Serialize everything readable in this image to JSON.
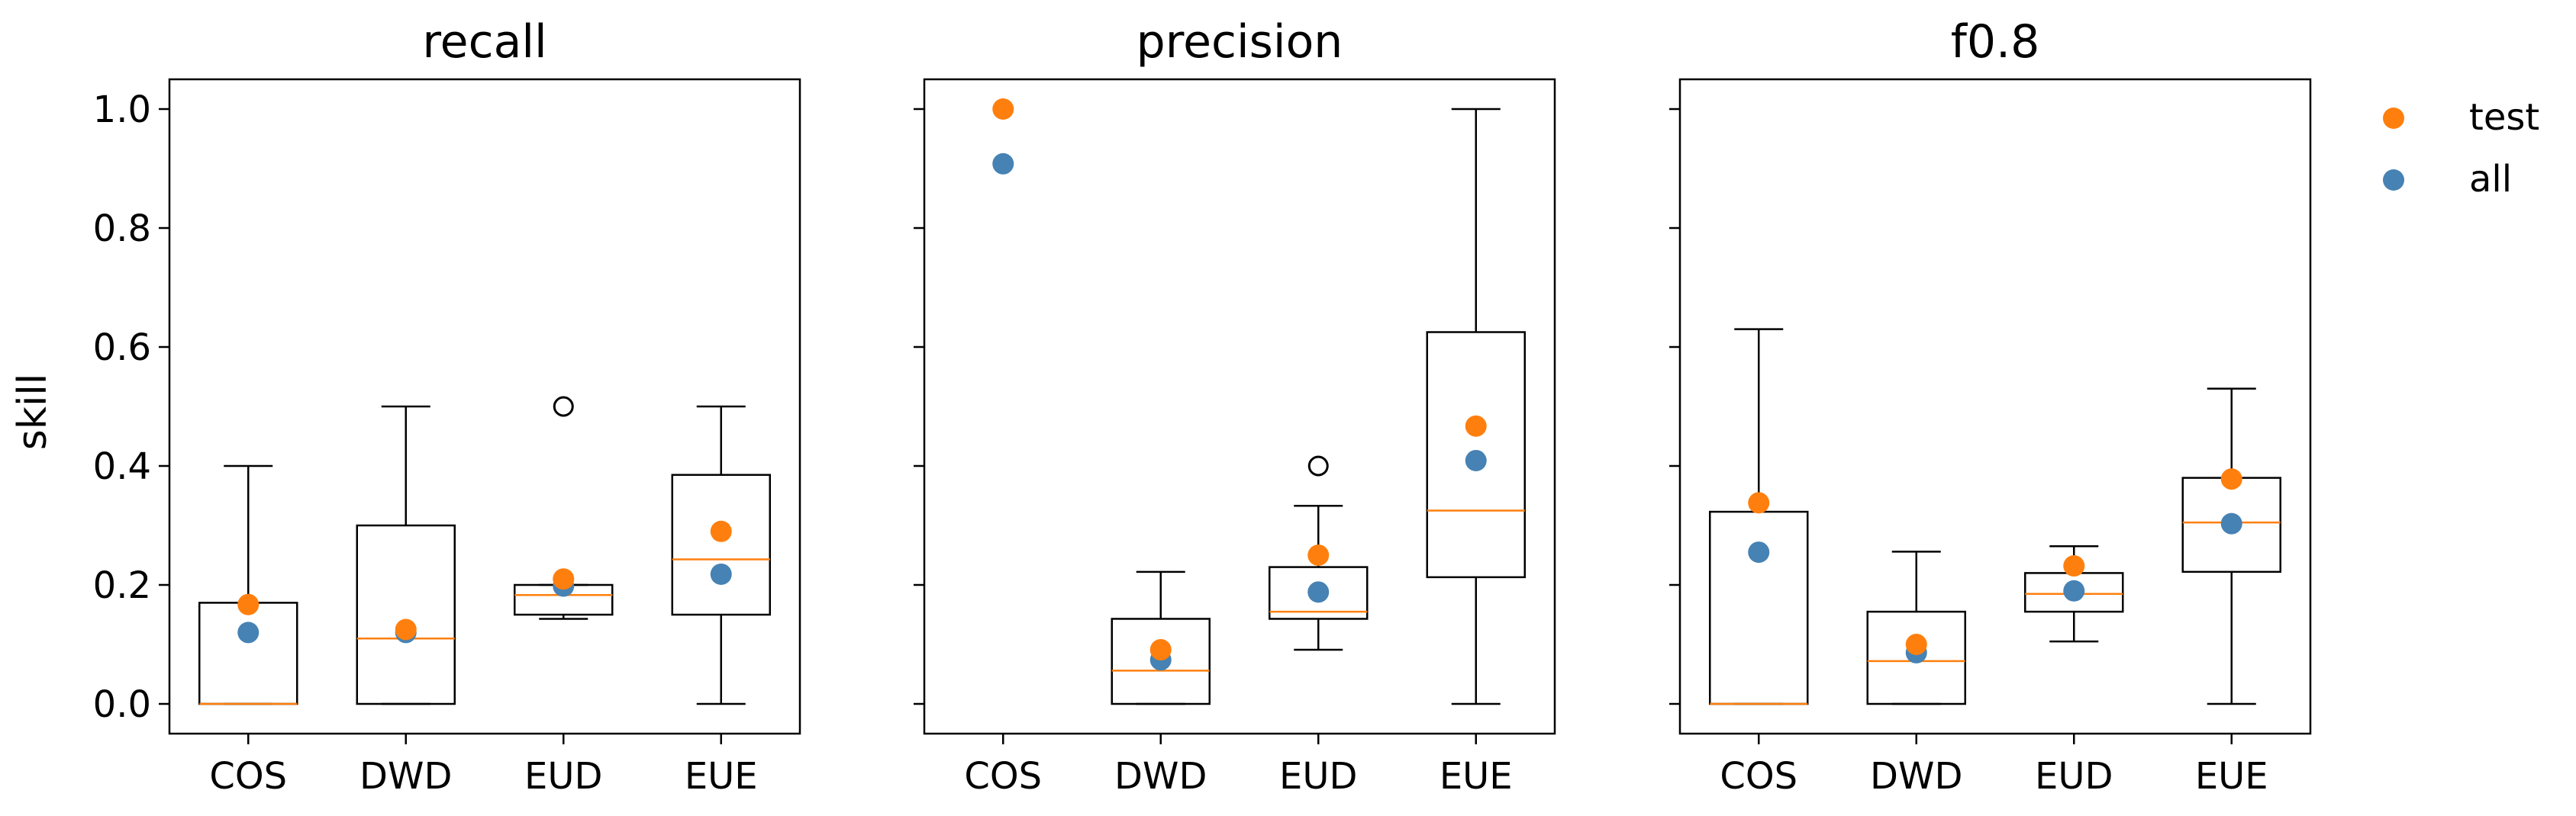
{
  "chart_data": {
    "type": "box",
    "ylabel": "skill",
    "ylim": [
      -0.05,
      1.05
    ],
    "yticks": [
      0.0,
      0.2,
      0.4,
      0.6,
      0.8,
      1.0
    ],
    "ytick_labels": [
      "0.0",
      "0.2",
      "0.4",
      "0.6",
      "0.8",
      "1.0"
    ],
    "shared_y": true,
    "categories": [
      "COS",
      "DWD",
      "EUD",
      "EUE"
    ],
    "colors": {
      "test": "#ff7f0e",
      "all": "#4682b4",
      "median": "#ff7f0e",
      "box": "#000000"
    },
    "legend": {
      "placement": "outside-top-right",
      "entries": [
        {
          "label": "test",
          "color": "#ff7f0e"
        },
        {
          "label": "all",
          "color": "#4682b4"
        }
      ]
    },
    "panels": [
      {
        "title": "recall",
        "boxes": [
          {
            "category": "COS",
            "whislo": 0.0,
            "q1": 0.0,
            "med": 0.0,
            "q3": 0.17,
            "whishi": 0.4,
            "fliers": []
          },
          {
            "category": "DWD",
            "whislo": 0.0,
            "q1": 0.0,
            "med": 0.11,
            "q3": 0.3,
            "whishi": 0.5,
            "fliers": []
          },
          {
            "category": "EUD",
            "whislo": 0.143,
            "q1": 0.15,
            "med": 0.183,
            "q3": 0.2,
            "whishi": 0.2,
            "fliers": [
              0.5
            ]
          },
          {
            "category": "EUE",
            "whislo": 0.0,
            "q1": 0.15,
            "med": 0.243,
            "q3": 0.385,
            "whishi": 0.5,
            "fliers": []
          }
        ],
        "test": [
          0.167,
          0.125,
          0.21,
          0.29
        ],
        "all": [
          0.12,
          0.12,
          0.198,
          0.218
        ]
      },
      {
        "title": "precision",
        "boxes": [
          {
            "category": "COS",
            "empty": true
          },
          {
            "category": "DWD",
            "whislo": 0.0,
            "q1": 0.0,
            "med": 0.056,
            "q3": 0.143,
            "whishi": 0.222,
            "fliers": []
          },
          {
            "category": "EUD",
            "whislo": 0.091,
            "q1": 0.143,
            "med": 0.155,
            "q3": 0.23,
            "whishi": 0.333,
            "fliers": [
              0.4
            ]
          },
          {
            "category": "EUE",
            "whislo": 0.0,
            "q1": 0.213,
            "med": 0.325,
            "q3": 0.625,
            "whishi": 1.0,
            "fliers": []
          }
        ],
        "test": [
          1.0,
          0.091,
          0.25,
          0.467
        ],
        "all": [
          0.908,
          0.074,
          0.188,
          0.409
        ]
      },
      {
        "title": "f0.8",
        "boxes": [
          {
            "category": "COS",
            "whislo": 0.0,
            "q1": 0.0,
            "med": 0.0,
            "q3": 0.323,
            "whishi": 0.63,
            "fliers": []
          },
          {
            "category": "DWD",
            "whislo": 0.0,
            "q1": 0.0,
            "med": 0.072,
            "q3": 0.155,
            "whishi": 0.256,
            "fliers": []
          },
          {
            "category": "EUD",
            "whislo": 0.105,
            "q1": 0.155,
            "med": 0.185,
            "q3": 0.22,
            "whishi": 0.265,
            "fliers": []
          },
          {
            "category": "EUE",
            "whislo": 0.0,
            "q1": 0.222,
            "med": 0.305,
            "q3": 0.38,
            "whishi": 0.53,
            "fliers": []
          }
        ],
        "test": [
          0.338,
          0.1,
          0.232,
          0.378
        ],
        "all": [
          0.255,
          0.086,
          0.19,
          0.303
        ]
      }
    ]
  }
}
